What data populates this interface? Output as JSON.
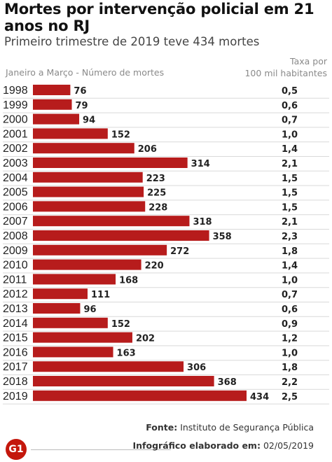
{
  "title": "Mortes por intervenção policial em 21 anos no RJ",
  "subtitle": "Primeiro trimestre de 2019 teve 434 mortes",
  "header_left": "Janeiro a Março - Número de mortes",
  "header_right_line1": "Taxa por",
  "header_right_line2": "100 mil habitantes",
  "source_label": "Fonte:",
  "source_text": "Instituto de Segurança Pública",
  "credit_label": "Infográfico elaborado em:",
  "credit_date": "02/05/2019",
  "logo_text": "G1",
  "colors": {
    "bar": "#b71c1c",
    "row_line": "#d9d9d9"
  },
  "chart_data": {
    "type": "bar",
    "orientation": "horizontal",
    "title": "Mortes por intervenção policial em 21 anos no RJ",
    "subtitle": "Primeiro trimestre de 2019 teve 434 mortes",
    "categories": [
      "1998",
      "1999",
      "2000",
      "2001",
      "2002",
      "2003",
      "2004",
      "2005",
      "2006",
      "2007",
      "2008",
      "2009",
      "2010",
      "2011",
      "2012",
      "2013",
      "2014",
      "2015",
      "2016",
      "2017",
      "2018",
      "2019"
    ],
    "series": [
      {
        "values": [
          76,
          79,
          94,
          152,
          206,
          314,
          223,
          225,
          228,
          318,
          358,
          272,
          220,
          168,
          111,
          96,
          152,
          202,
          163,
          306,
          368,
          434
        ]
      }
    ],
    "rates": [
      "0,5",
      "0,6",
      "0,7",
      "1,0",
      "1,4",
      "2,1",
      "1,5",
      "1,5",
      "1,5",
      "2,1",
      "2,3",
      "1,8",
      "1,4",
      "1,0",
      "0,7",
      "0,6",
      "0,9",
      "1,2",
      "1,0",
      "1,8",
      "2,2",
      "2,5"
    ],
    "xlim": [
      0,
      434
    ],
    "grid": false,
    "legend": "none"
  }
}
